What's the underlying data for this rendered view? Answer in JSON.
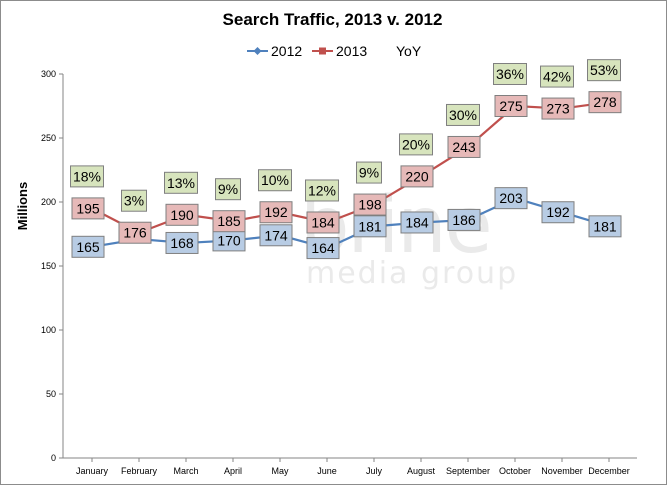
{
  "chart_data": {
    "type": "line",
    "title": "Search Traffic, 2013 v. 2012",
    "ylabel": "Millions",
    "xlabel": "",
    "ylim": [
      0,
      300
    ],
    "yticks": [
      0,
      50,
      100,
      150,
      200,
      250,
      300
    ],
    "grid": false,
    "legend_position": "top",
    "categories": [
      "January",
      "February",
      "March",
      "April",
      "May",
      "June",
      "July",
      "August",
      "September",
      "October",
      "November",
      "December"
    ],
    "series": [
      {
        "name": "2012",
        "color": "#4f81bd",
        "label_fill": "#b8cce4",
        "marker": "diamond",
        "values": [
          165,
          171,
          168,
          170,
          174,
          164,
          181,
          184,
          186,
          203,
          192,
          181
        ],
        "labels": [
          "165",
          "",
          "168",
          "170",
          "174",
          "164",
          "181",
          "184",
          "186",
          "203",
          "192",
          "181"
        ]
      },
      {
        "name": "2013",
        "color": "#c0504d",
        "label_fill": "#e6b9b8",
        "marker": "square",
        "values": [
          195,
          176,
          190,
          185,
          192,
          184,
          198,
          220,
          243,
          275,
          273,
          278
        ],
        "labels": [
          "195",
          "176",
          "190",
          "185",
          "192",
          "184",
          "198",
          "220",
          "243",
          "275",
          "273",
          "278"
        ]
      }
    ],
    "yoy": {
      "name": "YoY",
      "label_fill": "#d7e4bd",
      "labels": [
        "18%",
        "3%",
        "13%",
        "9%",
        "10%",
        "12%",
        "9%",
        "20%",
        "30%",
        "36%",
        "42%",
        "53%"
      ]
    }
  },
  "watermark": {
    "line1": "brine",
    "line2": "media group"
  }
}
